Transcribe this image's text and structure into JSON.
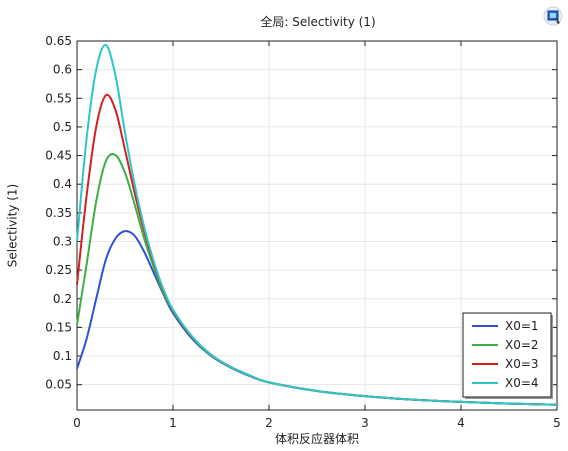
{
  "header": {
    "title": "全局: Selectivity (1)"
  },
  "toolbar": {
    "export_icon": "image-export-icon"
  },
  "chart_data": {
    "type": "line",
    "title": "全局: Selectivity (1)",
    "xlabel": "体积反应器体积",
    "ylabel": "Selectivity (1)",
    "xlim": [
      0,
      5
    ],
    "ylim": [
      0.0058,
      0.65
    ],
    "xticks": [
      0,
      1,
      2,
      3,
      4,
      5
    ],
    "yticks": [
      0.05,
      0.1,
      0.15,
      0.2,
      0.25,
      0.3,
      0.35,
      0.4,
      0.45,
      0.5,
      0.55,
      0.6,
      0.65
    ],
    "ytick_labels": [
      "0.05",
      "0.1",
      "0.15",
      "0.2",
      "0.25",
      "0.3",
      "0.35",
      "0.4",
      "0.45",
      "0.5",
      "0.55",
      "0.6",
      "0.65"
    ],
    "grid": true,
    "legend_position": "lower-right",
    "x": [
      0,
      0.1,
      0.2,
      0.3,
      0.4,
      0.5,
      0.6,
      0.7,
      0.8,
      0.9,
      1.0,
      1.2,
      1.4,
      1.6,
      1.8,
      2.0,
      2.5,
      3.0,
      3.5,
      4.0,
      4.5,
      5.0
    ],
    "series": [
      {
        "name": "X0=1",
        "color": "#2f4fd6",
        "values": [
          0.078,
          0.13,
          0.2,
          0.268,
          0.305,
          0.318,
          0.31,
          0.282,
          0.245,
          0.208,
          0.175,
          0.13,
          0.1,
          0.08,
          0.065,
          0.054,
          0.039,
          0.03,
          0.024,
          0.02,
          0.017,
          0.015
        ]
      },
      {
        "name": "X0=2",
        "color": "#3cb044",
        "values": [
          0.155,
          0.26,
          0.37,
          0.44,
          0.451,
          0.42,
          0.365,
          0.305,
          0.255,
          0.21,
          0.178,
          0.132,
          0.101,
          0.081,
          0.066,
          0.054,
          0.039,
          0.03,
          0.024,
          0.02,
          0.017,
          0.015
        ]
      },
      {
        "name": "X0=3",
        "color": "#d42020",
        "values": [
          0.225,
          0.38,
          0.5,
          0.555,
          0.53,
          0.46,
          0.385,
          0.318,
          0.262,
          0.215,
          0.18,
          0.133,
          0.102,
          0.081,
          0.066,
          0.054,
          0.039,
          0.03,
          0.024,
          0.02,
          0.017,
          0.015
        ]
      },
      {
        "name": "X0=4",
        "color": "#2cc6c6",
        "values": [
          0.3,
          0.48,
          0.6,
          0.643,
          0.59,
          0.49,
          0.4,
          0.325,
          0.265,
          0.217,
          0.181,
          0.134,
          0.102,
          0.081,
          0.066,
          0.054,
          0.039,
          0.03,
          0.024,
          0.02,
          0.017,
          0.015
        ]
      }
    ]
  }
}
